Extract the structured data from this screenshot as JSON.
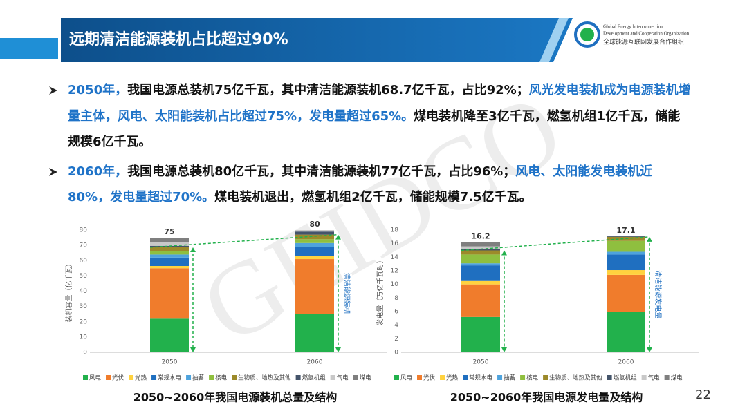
{
  "header": {
    "title": "远期清洁能源装机占比超过90%",
    "org_en_1": "Global Energy Interconnection",
    "org_en_2": "Development and Cooperation Organization",
    "org_cn": "全球能源互联网发展合作组织"
  },
  "watermark": "GEIDCO",
  "bullets": [
    {
      "runs": [
        {
          "text": "2050年，",
          "color": "#1f73c8"
        },
        {
          "text": "我国电源总装机75亿千瓦，其中清洁能源装机68.7亿千瓦，占比92%；",
          "color": "#111111"
        },
        {
          "text": "风光发电装机成为电源装机增量主体，风电、太阳能装机占比超过75%，发电量超过65%。",
          "color": "#1f73c8"
        },
        {
          "text": "煤电装机降至3亿千瓦，燃氢机组1亿千瓦，储能规模6亿千瓦。",
          "color": "#111111"
        }
      ]
    },
    {
      "runs": [
        {
          "text": "2060年，",
          "color": "#1f73c8"
        },
        {
          "text": "我国电源总装机80亿千瓦，其中清洁能源装机77亿千瓦，占比96%；",
          "color": "#111111"
        },
        {
          "text": "风电、太阳能发电装机近80%，发电量超过70%。",
          "color": "#1f73c8"
        },
        {
          "text": "煤电装机退出，燃氢机组2亿千瓦，储能规模7.5亿千瓦。",
          "color": "#111111"
        }
      ]
    }
  ],
  "page_number": "22",
  "chart_data": [
    {
      "type": "stacked-bar",
      "title": "2050~2060年我国电源装机总量及结构",
      "ylabel": "装机容量（亿千瓦）",
      "annotation": "清洁能源装机",
      "categories": [
        "2050",
        "2060"
      ],
      "totals": [
        75,
        80
      ],
      "ylim": [
        0,
        80
      ],
      "yticks": [
        0,
        10,
        20,
        30,
        40,
        50,
        60,
        70,
        80
      ],
      "series": [
        {
          "name": "风电",
          "color": "#22b14c",
          "values": [
            22,
            25
          ]
        },
        {
          "name": "光伏",
          "color": "#f07c2c",
          "values": [
            33,
            36
          ]
        },
        {
          "name": "光热",
          "color": "#ffd23f",
          "values": [
            1.5,
            2
          ]
        },
        {
          "name": "常规水电",
          "color": "#1f6fc0",
          "values": [
            5.5,
            6
          ]
        },
        {
          "name": "抽蓄",
          "color": "#4ea3dd",
          "values": [
            2,
            2.5
          ]
        },
        {
          "name": "核电",
          "color": "#8fbf3f",
          "values": [
            2,
            2.5
          ]
        },
        {
          "name": "生物质、地热及其他",
          "color": "#9c8a2a",
          "values": [
            2.7,
            3
          ]
        },
        {
          "name": "燃氢机组",
          "color": "#44546a",
          "values": [
            1,
            2
          ]
        },
        {
          "name": "气电",
          "color": "#c8c8c8",
          "values": [
            2.3,
            1
          ]
        },
        {
          "name": "煤电",
          "color": "#7f7f7f",
          "values": [
            3,
            0
          ]
        }
      ]
    },
    {
      "type": "stacked-bar",
      "title": "2050~2060年我国电源发电量及结构",
      "ylabel": "发电量（万亿千瓦时）",
      "annotation": "清洁能源发电量",
      "categories": [
        "2050",
        "2060"
      ],
      "totals": [
        16.2,
        17.1
      ],
      "ylim": [
        0,
        18
      ],
      "yticks": [
        0,
        2,
        4,
        6,
        8,
        10,
        12,
        14,
        16,
        18
      ],
      "series": [
        {
          "name": "风电",
          "color": "#22b14c",
          "values": [
            5.2,
            6
          ]
        },
        {
          "name": "光伏",
          "color": "#f07c2c",
          "values": [
            4.8,
            5.4
          ]
        },
        {
          "name": "光热",
          "color": "#ffd23f",
          "values": [
            0.5,
            0.7
          ]
        },
        {
          "name": "常规水电",
          "color": "#1f6fc0",
          "values": [
            2.3,
            2.3
          ]
        },
        {
          "name": "抽蓄",
          "color": "#4ea3dd",
          "values": [
            0.3,
            0.4
          ]
        },
        {
          "name": "核电",
          "color": "#8fbf3f",
          "values": [
            1.3,
            1.6
          ]
        },
        {
          "name": "生物质、地热及其他",
          "color": "#9c8a2a",
          "values": [
            0.6,
            0.6
          ]
        },
        {
          "name": "燃氢机组",
          "color": "#44546a",
          "values": [
            0.2,
            0.1
          ]
        },
        {
          "name": "气电",
          "color": "#c8c8c8",
          "values": [
            0.4,
            0
          ]
        },
        {
          "name": "煤电",
          "color": "#7f7f7f",
          "values": [
            0.6,
            0
          ]
        }
      ]
    }
  ]
}
